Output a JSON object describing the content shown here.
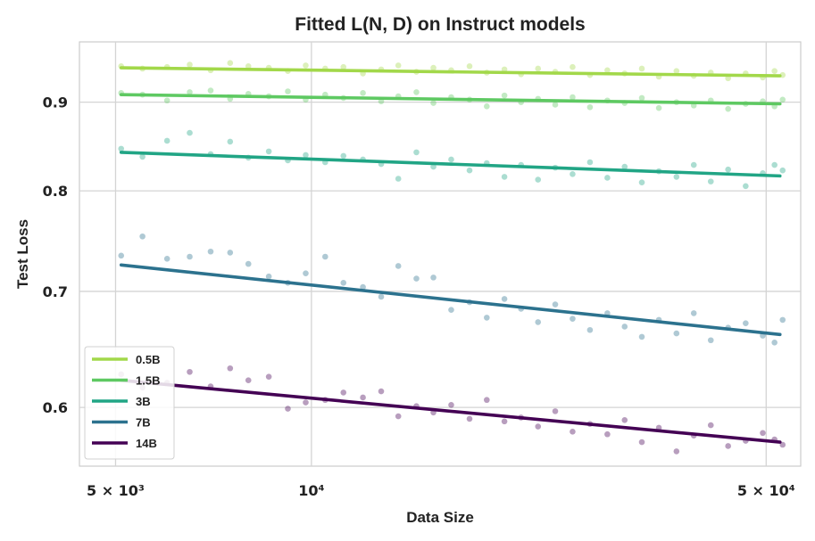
{
  "chart_data": {
    "type": "scatter",
    "title": "Fitted L(N, D) on Instruct models",
    "xlabel": "Data Size",
    "ylabel": "Test Loss",
    "xscale": "log",
    "yscale": "log",
    "xlim": [
      4400,
      56500
    ],
    "ylim": [
      0.555,
      0.975
    ],
    "grid": true,
    "x_ticks": [
      {
        "value": 5000,
        "label": "5 × 10³"
      },
      {
        "value": 10000,
        "label": "10⁴"
      },
      {
        "value": 50000,
        "label": "5 × 10⁴"
      }
    ],
    "y_ticks": [
      {
        "value": 0.6,
        "label": "0.6"
      },
      {
        "value": 0.7,
        "label": "0.7"
      },
      {
        "value": 0.8,
        "label": "0.8"
      },
      {
        "value": 0.9,
        "label": "0.9"
      }
    ],
    "legend": {
      "position": "lower-left"
    },
    "series": [
      {
        "name": "0.5B",
        "color": "#a2d84a",
        "fit": {
          "x": [
            5100,
            52500
          ],
          "y": [
            0.942,
            0.932
          ]
        },
        "points": [
          [
            5100,
            0.944
          ],
          [
            5500,
            0.941
          ],
          [
            6000,
            0.943
          ],
          [
            6500,
            0.946
          ],
          [
            7000,
            0.939
          ],
          [
            7500,
            0.948
          ],
          [
            8000,
            0.944
          ],
          [
            8600,
            0.942
          ],
          [
            9200,
            0.938
          ],
          [
            9800,
            0.945
          ],
          [
            10500,
            0.941
          ],
          [
            11200,
            0.943
          ],
          [
            12000,
            0.935
          ],
          [
            12800,
            0.94
          ],
          [
            13600,
            0.945
          ],
          [
            14500,
            0.937
          ],
          [
            15400,
            0.942
          ],
          [
            16400,
            0.939
          ],
          [
            17500,
            0.944
          ],
          [
            18600,
            0.936
          ],
          [
            19800,
            0.94
          ],
          [
            21000,
            0.934
          ],
          [
            22300,
            0.941
          ],
          [
            23700,
            0.937
          ],
          [
            25200,
            0.943
          ],
          [
            26800,
            0.933
          ],
          [
            28500,
            0.939
          ],
          [
            30300,
            0.935
          ],
          [
            32200,
            0.941
          ],
          [
            34200,
            0.931
          ],
          [
            36400,
            0.938
          ],
          [
            38700,
            0.932
          ],
          [
            41100,
            0.936
          ],
          [
            43700,
            0.929
          ],
          [
            46500,
            0.935
          ],
          [
            49400,
            0.93
          ],
          [
            51500,
            0.938
          ],
          [
            53000,
            0.933
          ]
        ]
      },
      {
        "name": "1.5B",
        "color": "#5ec962",
        "fit": {
          "x": [
            5100,
            52500
          ],
          "y": [
            0.909,
            0.898
          ]
        },
        "points": [
          [
            5100,
            0.911
          ],
          [
            5500,
            0.909
          ],
          [
            6000,
            0.902
          ],
          [
            6500,
            0.912
          ],
          [
            7000,
            0.914
          ],
          [
            7500,
            0.904
          ],
          [
            8000,
            0.91
          ],
          [
            8600,
            0.907
          ],
          [
            9200,
            0.913
          ],
          [
            9800,
            0.903
          ],
          [
            10500,
            0.909
          ],
          [
            11200,
            0.905
          ],
          [
            12000,
            0.911
          ],
          [
            12800,
            0.901
          ],
          [
            13600,
            0.907
          ],
          [
            14500,
            0.912
          ],
          [
            15400,
            0.899
          ],
          [
            16400,
            0.906
          ],
          [
            17500,
            0.903
          ],
          [
            18600,
            0.895
          ],
          [
            19800,
            0.908
          ],
          [
            21000,
            0.9
          ],
          [
            22300,
            0.904
          ],
          [
            23700,
            0.897
          ],
          [
            25200,
            0.906
          ],
          [
            26800,
            0.894
          ],
          [
            28500,
            0.902
          ],
          [
            30300,
            0.899
          ],
          [
            32200,
            0.905
          ],
          [
            34200,
            0.893
          ],
          [
            36400,
            0.9
          ],
          [
            38700,
            0.896
          ],
          [
            41100,
            0.902
          ],
          [
            43700,
            0.892
          ],
          [
            46500,
            0.898
          ],
          [
            49400,
            0.901
          ],
          [
            51500,
            0.895
          ],
          [
            53000,
            0.903
          ]
        ]
      },
      {
        "name": "3B",
        "color": "#21a585",
        "fit": {
          "x": [
            5100,
            52500
          ],
          "y": [
            0.842,
            0.816
          ]
        },
        "points": [
          [
            5100,
            0.846
          ],
          [
            5500,
            0.837
          ],
          [
            6000,
            0.855
          ],
          [
            6500,
            0.864
          ],
          [
            7000,
            0.84
          ],
          [
            7500,
            0.854
          ],
          [
            8000,
            0.836
          ],
          [
            8600,
            0.843
          ],
          [
            9200,
            0.833
          ],
          [
            9800,
            0.839
          ],
          [
            10500,
            0.831
          ],
          [
            11200,
            0.838
          ],
          [
            12000,
            0.834
          ],
          [
            12800,
            0.829
          ],
          [
            13600,
            0.813
          ],
          [
            14500,
            0.842
          ],
          [
            15400,
            0.826
          ],
          [
            16400,
            0.834
          ],
          [
            17500,
            0.822
          ],
          [
            18600,
            0.83
          ],
          [
            19800,
            0.815
          ],
          [
            21000,
            0.828
          ],
          [
            22300,
            0.812
          ],
          [
            23700,
            0.825
          ],
          [
            25200,
            0.818
          ],
          [
            26800,
            0.831
          ],
          [
            28500,
            0.814
          ],
          [
            30300,
            0.826
          ],
          [
            32200,
            0.809
          ],
          [
            34200,
            0.821
          ],
          [
            36400,
            0.815
          ],
          [
            38700,
            0.828
          ],
          [
            41100,
            0.81
          ],
          [
            43700,
            0.823
          ],
          [
            46500,
            0.805
          ],
          [
            49400,
            0.819
          ],
          [
            51500,
            0.828
          ],
          [
            53000,
            0.822
          ]
        ]
      },
      {
        "name": "7B",
        "color": "#2c728e",
        "fit": {
          "x": [
            5100,
            52500
          ],
          "y": [
            0.725,
            0.661
          ]
        },
        "points": [
          [
            5100,
            0.734
          ],
          [
            5500,
            0.753
          ],
          [
            6000,
            0.731
          ],
          [
            6500,
            0.733
          ],
          [
            7000,
            0.738
          ],
          [
            7500,
            0.737
          ],
          [
            8000,
            0.726
          ],
          [
            8600,
            0.714
          ],
          [
            9200,
            0.708
          ],
          [
            9800,
            0.717
          ],
          [
            10500,
            0.733
          ],
          [
            11200,
            0.708
          ],
          [
            12000,
            0.704
          ],
          [
            12800,
            0.695
          ],
          [
            13600,
            0.724
          ],
          [
            14500,
            0.712
          ],
          [
            15400,
            0.713
          ],
          [
            16400,
            0.683
          ],
          [
            17500,
            0.69
          ],
          [
            18600,
            0.676
          ],
          [
            19800,
            0.693
          ],
          [
            21000,
            0.684
          ],
          [
            22300,
            0.672
          ],
          [
            23700,
            0.688
          ],
          [
            25200,
            0.675
          ],
          [
            26800,
            0.665
          ],
          [
            28500,
            0.68
          ],
          [
            30300,
            0.668
          ],
          [
            32200,
            0.659
          ],
          [
            34200,
            0.674
          ],
          [
            36400,
            0.662
          ],
          [
            38700,
            0.68
          ],
          [
            41100,
            0.656
          ],
          [
            43700,
            0.667
          ],
          [
            46500,
            0.671
          ],
          [
            49400,
            0.66
          ],
          [
            51500,
            0.654
          ],
          [
            53000,
            0.674
          ]
        ]
      },
      {
        "name": "14B",
        "color": "#440154",
        "fit": {
          "x": [
            5100,
            52500
          ],
          "y": [
            0.622,
            0.573
          ]
        },
        "points": [
          [
            5100,
            0.627
          ],
          [
            5500,
            0.616
          ],
          [
            6000,
            0.62
          ],
          [
            6500,
            0.629
          ],
          [
            7000,
            0.617
          ],
          [
            7500,
            0.632
          ],
          [
            8000,
            0.622
          ],
          [
            8600,
            0.625
          ],
          [
            9200,
            0.599
          ],
          [
            9800,
            0.604
          ],
          [
            10500,
            0.606
          ],
          [
            11200,
            0.612
          ],
          [
            12000,
            0.608
          ],
          [
            12800,
            0.613
          ],
          [
            13600,
            0.593
          ],
          [
            14500,
            0.601
          ],
          [
            15400,
            0.596
          ],
          [
            16400,
            0.602
          ],
          [
            17500,
            0.591
          ],
          [
            18600,
            0.606
          ],
          [
            19800,
            0.589
          ],
          [
            21000,
            0.592
          ],
          [
            22300,
            0.585
          ],
          [
            23700,
            0.597
          ],
          [
            25200,
            0.581
          ],
          [
            26800,
            0.587
          ],
          [
            28500,
            0.579
          ],
          [
            30300,
            0.59
          ],
          [
            32200,
            0.573
          ],
          [
            34200,
            0.584
          ],
          [
            36400,
            0.566
          ],
          [
            38700,
            0.578
          ],
          [
            41100,
            0.586
          ],
          [
            43700,
            0.57
          ],
          [
            46500,
            0.574
          ],
          [
            49400,
            0.58
          ],
          [
            51500,
            0.575
          ],
          [
            53000,
            0.571
          ]
        ]
      }
    ]
  }
}
